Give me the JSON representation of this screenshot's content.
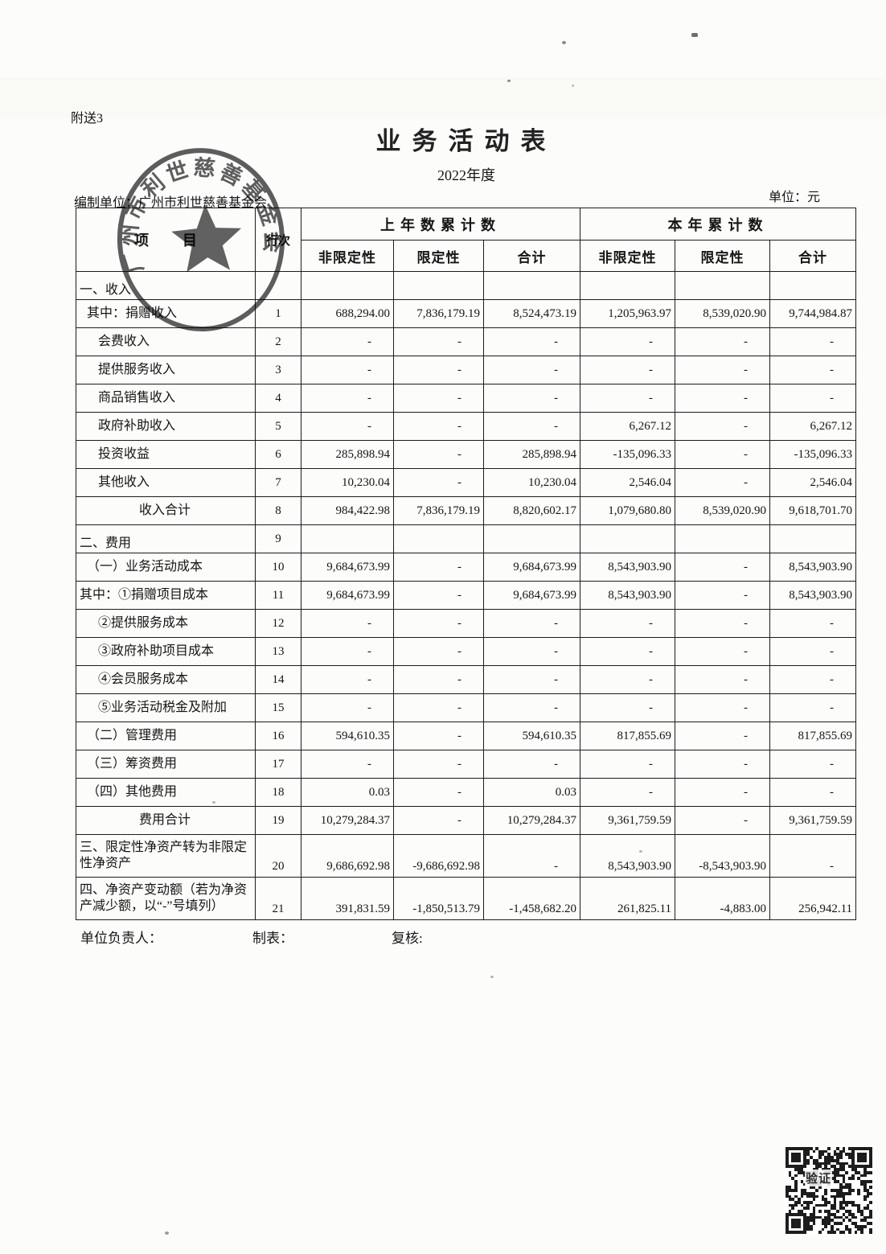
{
  "page": {
    "attachment_label": "附送3",
    "title": "业务活动表",
    "subtitle": "2022年度",
    "prepared_by": "编制单位：广州市利世慈善基金会",
    "unit_label": "单位：元"
  },
  "stamp": {
    "org_name": "广州市利世慈善基金会"
  },
  "table": {
    "header": {
      "item": "项目",
      "line_no": "行次",
      "prior_group": "上年数累计数",
      "current_group": "本年累计数",
      "sub_prior": [
        "非限定性",
        "限定性",
        "合计"
      ],
      "sub_current": [
        "非限定性",
        "限定性",
        "合计"
      ]
    },
    "rows": [
      {
        "item": "一、收入",
        "line": "",
        "indent": 0,
        "section": true,
        "vals": [
          "",
          "",
          "",
          "",
          "",
          ""
        ]
      },
      {
        "item": "其中：捐赠收入",
        "line": "1",
        "indent": 1,
        "vals": [
          "688,294.00",
          "7,836,179.19",
          "8,524,473.19",
          "1,205,963.97",
          "8,539,020.90",
          "9,744,984.87"
        ]
      },
      {
        "item": "会费收入",
        "line": "2",
        "indent": 2,
        "vals": [
          "-",
          "-",
          "-",
          "-",
          "-",
          "-"
        ]
      },
      {
        "item": "提供服务收入",
        "line": "3",
        "indent": 2,
        "vals": [
          "-",
          "-",
          "-",
          "-",
          "-",
          "-"
        ]
      },
      {
        "item": "商品销售收入",
        "line": "4",
        "indent": 2,
        "vals": [
          "-",
          "-",
          "-",
          "-",
          "-",
          "-"
        ]
      },
      {
        "item": "政府补助收入",
        "line": "5",
        "indent": 2,
        "vals": [
          "-",
          "-",
          "-",
          "6,267.12",
          "-",
          "6,267.12"
        ]
      },
      {
        "item": "投资收益",
        "line": "6",
        "indent": 2,
        "vals": [
          "285,898.94",
          "-",
          "285,898.94",
          "-135,096.33",
          "-",
          "-135,096.33"
        ]
      },
      {
        "item": "其他收入",
        "line": "7",
        "indent": 2,
        "vals": [
          "10,230.04",
          "-",
          "10,230.04",
          "2,546.04",
          "-",
          "2,546.04"
        ]
      },
      {
        "item": "收入合计",
        "line": "8",
        "center": true,
        "vals": [
          "984,422.98",
          "7,836,179.19",
          "8,820,602.17",
          "1,079,680.80",
          "8,539,020.90",
          "9,618,701.70"
        ]
      },
      {
        "item": "二、费用",
        "line": "9",
        "indent": 0,
        "section": true,
        "vals": [
          "",
          "",
          "",
          "",
          "",
          ""
        ]
      },
      {
        "item": "（一）业务活动成本",
        "line": "10",
        "indent": 1,
        "vals": [
          "9,684,673.99",
          "-",
          "9,684,673.99",
          "8,543,903.90",
          "-",
          "8,543,903.90"
        ]
      },
      {
        "item": "其中：①捐赠项目成本",
        "line": "11",
        "indent": 0,
        "vals": [
          "9,684,673.99",
          "-",
          "9,684,673.99",
          "8,543,903.90",
          "-",
          "8,543,903.90"
        ]
      },
      {
        "item": "②提供服务成本",
        "line": "12",
        "indent": 2,
        "vals": [
          "-",
          "-",
          "-",
          "-",
          "-",
          "-"
        ]
      },
      {
        "item": "③政府补助项目成本",
        "line": "13",
        "indent": 2,
        "vals": [
          "-",
          "-",
          "-",
          "-",
          "-",
          "-"
        ]
      },
      {
        "item": "④会员服务成本",
        "line": "14",
        "indent": 2,
        "vals": [
          "-",
          "-",
          "-",
          "-",
          "-",
          "-"
        ]
      },
      {
        "item": "⑤业务活动税金及附加",
        "line": "15",
        "indent": 2,
        "vals": [
          "-",
          "-",
          "-",
          "-",
          "-",
          "-"
        ]
      },
      {
        "item": "（二）管理费用",
        "line": "16",
        "indent": 1,
        "vals": [
          "594,610.35",
          "-",
          "594,610.35",
          "817,855.69",
          "-",
          "817,855.69"
        ]
      },
      {
        "item": "（三）筹资费用",
        "line": "17",
        "indent": 1,
        "vals": [
          "-",
          "-",
          "-",
          "-",
          "-",
          "-"
        ]
      },
      {
        "item": "（四）其他费用",
        "line": "18",
        "indent": 1,
        "vals": [
          "0.03",
          "-",
          "0.03",
          "-",
          "-",
          "-"
        ]
      },
      {
        "item": "费用合计",
        "line": "19",
        "center": true,
        "vals": [
          "10,279,284.37",
          "-",
          "10,279,284.37",
          "9,361,759.59",
          "-",
          "9,361,759.59"
        ]
      },
      {
        "item": "三、限定性净资产转为非限定性净资产",
        "line": "20",
        "indent": 0,
        "tall": true,
        "vals": [
          "9,686,692.98",
          "-9,686,692.98",
          "-",
          "8,543,903.90",
          "-8,543,903.90",
          "-"
        ]
      },
      {
        "item": "四、净资产变动额（若为净资产减少额，以“-”号填列）",
        "line": "21",
        "indent": 0,
        "tall": true,
        "vals": [
          "391,831.59",
          "-1,850,513.79",
          "-1,458,682.20",
          "261,825.11",
          "-4,883.00",
          "256,942.11"
        ]
      }
    ]
  },
  "footer": {
    "responsible_label": "单位负责人：",
    "preparer_label": "制表：",
    "reviewer_label": "复核:"
  },
  "qr": {
    "label": "验证"
  }
}
